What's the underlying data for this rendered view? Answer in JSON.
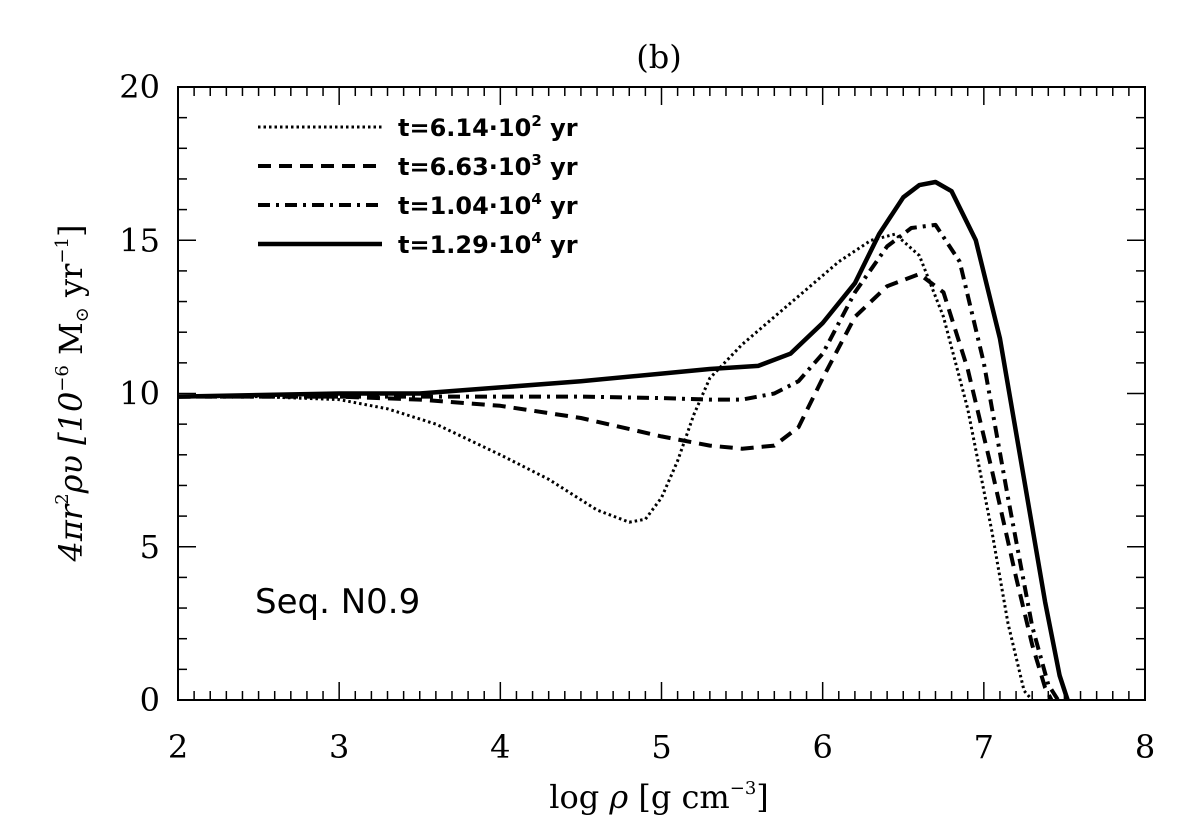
{
  "chart_data": {
    "type": "line",
    "title": "(b)",
    "xlabel": {
      "pre": "log ",
      "sym": "ρ",
      "mid": " [g cm",
      "sup": "−3",
      "post": "]"
    },
    "ylabel": {
      "pre": "4πr",
      "sup1": "2",
      "mid": "ρυ [10",
      "sup2": "−6",
      "mid2": " M",
      "sun": "⊙",
      "mid3": " yr",
      "sup3": "−1",
      "post": "]"
    },
    "xlim": [
      2,
      8
    ],
    "ylim": [
      0,
      20
    ],
    "xticks": [
      "2",
      "3",
      "4",
      "5",
      "6",
      "7",
      "8"
    ],
    "yticks": [
      "0",
      "5",
      "10",
      "15",
      "20"
    ],
    "annotation": "Seq. N0.9",
    "legend_position": "top-left",
    "series": [
      {
        "name": {
          "pre": "t=6.14·10",
          "sup": "2",
          "post": " yr"
        },
        "dash": "dotted",
        "x": [
          2.0,
          2.5,
          3.0,
          3.3,
          3.6,
          4.0,
          4.3,
          4.6,
          4.8,
          4.9,
          5.0,
          5.1,
          5.2,
          5.3,
          5.5,
          5.7,
          5.9,
          6.1,
          6.3,
          6.45,
          6.6,
          6.75,
          6.9,
          7.05,
          7.15,
          7.25,
          7.3
        ],
        "y": [
          9.9,
          9.9,
          9.8,
          9.5,
          9.0,
          8.0,
          7.2,
          6.2,
          5.8,
          5.9,
          6.6,
          7.8,
          9.3,
          10.5,
          11.6,
          12.5,
          13.4,
          14.3,
          15.0,
          15.2,
          14.5,
          12.5,
          9.5,
          5.5,
          2.5,
          0.3,
          0.0
        ]
      },
      {
        "name": {
          "pre": "t=6.63·10",
          "sup": "3",
          "post": " yr"
        },
        "dash": "dashed",
        "x": [
          2.0,
          2.5,
          3.0,
          3.5,
          4.0,
          4.5,
          5.0,
          5.3,
          5.5,
          5.7,
          5.85,
          6.0,
          6.2,
          6.4,
          6.6,
          6.75,
          6.9,
          7.05,
          7.2,
          7.3,
          7.38,
          7.42
        ],
        "y": [
          9.9,
          9.9,
          9.9,
          9.8,
          9.6,
          9.2,
          8.6,
          8.3,
          8.2,
          8.3,
          8.9,
          10.5,
          12.5,
          13.5,
          13.9,
          13.3,
          10.8,
          7.5,
          4.0,
          1.8,
          0.4,
          0.0
        ]
      },
      {
        "name": {
          "pre": "t=1.04·10",
          "sup": "4",
          "post": " yr"
        },
        "dash": "dashdot",
        "x": [
          2.0,
          3.0,
          4.0,
          4.5,
          5.0,
          5.3,
          5.5,
          5.7,
          5.85,
          6.0,
          6.2,
          6.4,
          6.55,
          6.7,
          6.85,
          7.0,
          7.15,
          7.3,
          7.4,
          7.46
        ],
        "y": [
          9.9,
          9.9,
          9.9,
          9.9,
          9.85,
          9.8,
          9.8,
          10.0,
          10.4,
          11.3,
          13.3,
          14.8,
          15.4,
          15.5,
          14.3,
          11.0,
          6.6,
          2.4,
          0.5,
          0.0
        ]
      },
      {
        "name": {
          "pre": "t=1.29·10",
          "sup": "4",
          "post": " yr"
        },
        "dash": "solid",
        "x": [
          2.0,
          3.0,
          3.5,
          4.0,
          4.5,
          5.0,
          5.3,
          5.6,
          5.8,
          6.0,
          6.2,
          6.35,
          6.5,
          6.6,
          6.7,
          6.8,
          6.95,
          7.1,
          7.25,
          7.38,
          7.47,
          7.52
        ],
        "y": [
          9.9,
          10.0,
          10.0,
          10.2,
          10.4,
          10.65,
          10.8,
          10.9,
          11.3,
          12.3,
          13.6,
          15.2,
          16.4,
          16.8,
          16.9,
          16.6,
          15.0,
          11.8,
          7.2,
          3.2,
          0.8,
          0.0
        ]
      }
    ]
  }
}
